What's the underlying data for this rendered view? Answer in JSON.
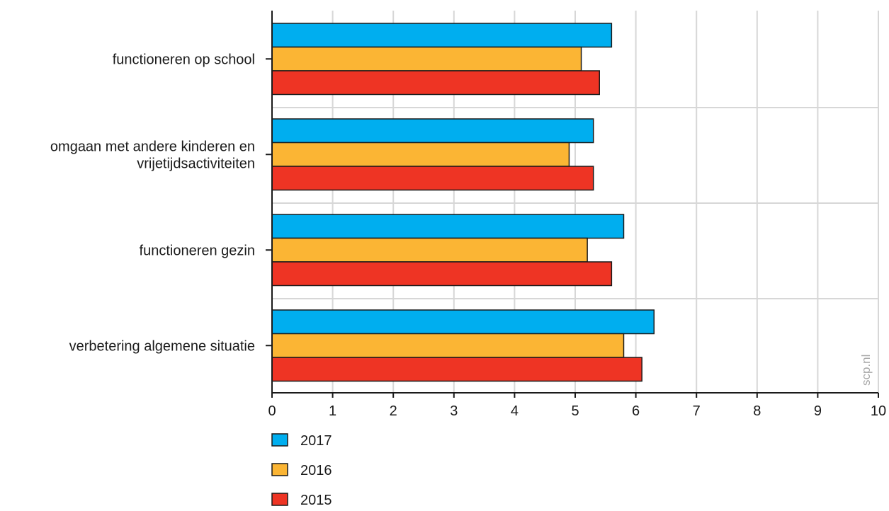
{
  "chart_data": {
    "type": "bar",
    "orientation": "horizontal",
    "categories": [
      "functioneren op school",
      "omgaan met andere kinderen en vrijetijdsactiviteiten",
      "functioneren gezin",
      "verbetering algemene situatie"
    ],
    "category_lines": [
      [
        "functioneren op school"
      ],
      [
        "omgaan met andere kinderen en",
        "vrijetijdsactiviteiten"
      ],
      [
        "functioneren gezin"
      ],
      [
        "verbetering algemene situatie"
      ]
    ],
    "series": [
      {
        "name": "2017",
        "color": "#00aeef",
        "values": [
          5.6,
          5.3,
          5.8,
          6.3
        ]
      },
      {
        "name": "2016",
        "color": "#fbb534",
        "values": [
          5.1,
          4.9,
          5.2,
          5.8
        ]
      },
      {
        "name": "2015",
        "color": "#ee3424",
        "values": [
          5.4,
          5.3,
          5.6,
          6.1
        ]
      }
    ],
    "xlim": [
      0,
      10
    ],
    "xticks": [
      0,
      1,
      2,
      3,
      4,
      5,
      6,
      7,
      8,
      9,
      10
    ],
    "grid": true,
    "legend_position": "bottom-left",
    "watermark": "scp.nl"
  }
}
